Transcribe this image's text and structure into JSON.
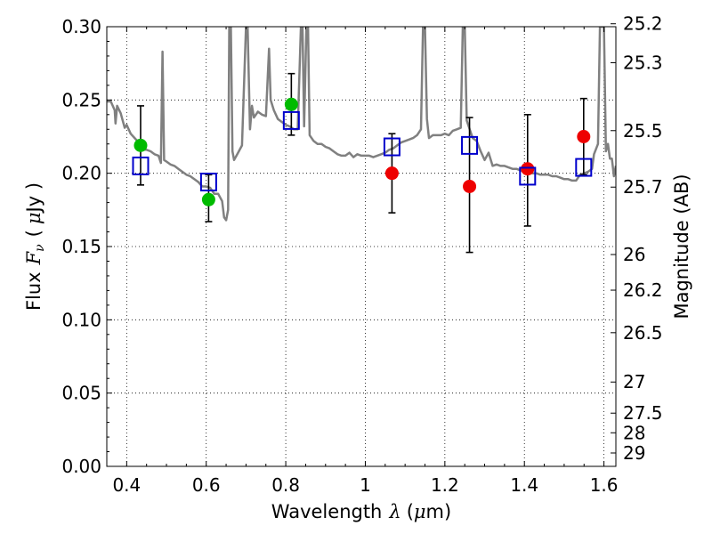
{
  "chart_data": {
    "type": "scatter",
    "title": "",
    "xlabel": "Wavelength",
    "xlabel_math": "λ",
    "xlabel_unit_open": "(",
    "xlabel_unit_math": "μ",
    "xlabel_unit_text": "m)",
    "ylabel": "Flux",
    "ylabel_math": "F",
    "ylabel_math_sub": "ν",
    "ylabel_unit_open": "(",
    "ylabel_unit_math": "μ",
    "ylabel_unit_text": "Jy )",
    "y2label": "Magnitude (AB)",
    "xlim": [
      0.35,
      1.63
    ],
    "ylim": [
      0.0,
      0.3
    ],
    "grid": true,
    "x_ticks": [
      0.4,
      0.6,
      0.8,
      1.0,
      1.2,
      1.4,
      1.6
    ],
    "x_tick_labels": [
      "0.4",
      "0.6",
      "0.8",
      "1",
      "1.2",
      "1.4",
      "1.6"
    ],
    "y_ticks": [
      0.0,
      0.05,
      0.1,
      0.15,
      0.2,
      0.25,
      0.3
    ],
    "y_tick_labels": [
      "0.00",
      "0.05",
      "0.10",
      "0.15",
      "0.20",
      "0.25",
      "0.30"
    ],
    "y2_ticks": [
      25.2,
      25.3,
      25.5,
      25.7,
      26,
      26.2,
      26.5,
      27,
      27.5,
      28,
      29
    ],
    "y2_tick_labels": [
      "25.2",
      "25.3",
      "25.5",
      "25.7",
      "26",
      "26.2",
      "26.5",
      "27",
      "27.5",
      "28",
      "29"
    ],
    "colors": {
      "template": "#808080",
      "green": "#00bb00",
      "red": "#ee0000",
      "box": "#0000cc",
      "errorbar": "#000000"
    },
    "observed": [
      {
        "x": 0.435,
        "y": 0.219,
        "yerr_low": 0.192,
        "yerr_high": 0.246,
        "color": "green"
      },
      {
        "x": 0.606,
        "y": 0.182,
        "yerr_low": 0.167,
        "yerr_high": 0.199,
        "color": "green"
      },
      {
        "x": 0.814,
        "y": 0.247,
        "yerr_low": 0.226,
        "yerr_high": 0.268,
        "color": "green"
      },
      {
        "x": 1.067,
        "y": 0.2,
        "yerr_low": 0.173,
        "yerr_high": 0.227,
        "color": "red"
      },
      {
        "x": 1.262,
        "y": 0.191,
        "yerr_low": 0.146,
        "yerr_high": 0.238,
        "color": "red"
      },
      {
        "x": 1.408,
        "y": 0.203,
        "yerr_low": 0.164,
        "yerr_high": 0.24,
        "color": "red"
      },
      {
        "x": 1.549,
        "y": 0.225,
        "yerr_low": 0.199,
        "yerr_high": 0.251,
        "color": "red"
      }
    ],
    "model": [
      {
        "x": 0.435,
        "y": 0.205
      },
      {
        "x": 0.606,
        "y": 0.194
      },
      {
        "x": 0.814,
        "y": 0.236
      },
      {
        "x": 1.067,
        "y": 0.218
      },
      {
        "x": 1.262,
        "y": 0.219
      },
      {
        "x": 1.408,
        "y": 0.198
      },
      {
        "x": 1.549,
        "y": 0.204
      }
    ],
    "template_spectrum": [
      [
        0.35,
        0.249
      ],
      [
        0.36,
        0.249
      ],
      [
        0.37,
        0.243
      ],
      [
        0.372,
        0.234
      ],
      [
        0.376,
        0.246
      ],
      [
        0.385,
        0.241
      ],
      [
        0.395,
        0.231
      ],
      [
        0.4,
        0.233
      ],
      [
        0.41,
        0.227
      ],
      [
        0.42,
        0.224
      ],
      [
        0.43,
        0.221
      ],
      [
        0.44,
        0.216
      ],
      [
        0.45,
        0.216
      ],
      [
        0.46,
        0.215
      ],
      [
        0.47,
        0.213
      ],
      [
        0.48,
        0.212
      ],
      [
        0.486,
        0.207
      ],
      [
        0.49,
        0.283
      ],
      [
        0.494,
        0.209
      ],
      [
        0.5,
        0.208
      ],
      [
        0.51,
        0.206
      ],
      [
        0.52,
        0.205
      ],
      [
        0.53,
        0.203
      ],
      [
        0.54,
        0.201
      ],
      [
        0.55,
        0.199
      ],
      [
        0.56,
        0.198
      ],
      [
        0.57,
        0.196
      ],
      [
        0.58,
        0.194
      ],
      [
        0.59,
        0.191
      ],
      [
        0.6,
        0.191
      ],
      [
        0.61,
        0.19
      ],
      [
        0.62,
        0.186
      ],
      [
        0.63,
        0.186
      ],
      [
        0.64,
        0.181
      ],
      [
        0.645,
        0.17
      ],
      [
        0.65,
        0.168
      ],
      [
        0.655,
        0.175
      ],
      [
        0.658,
        0.3
      ],
      [
        0.662,
        0.3
      ],
      [
        0.666,
        0.215
      ],
      [
        0.67,
        0.209
      ],
      [
        0.68,
        0.214
      ],
      [
        0.69,
        0.219
      ],
      [
        0.7,
        0.3
      ],
      [
        0.704,
        0.3
      ],
      [
        0.71,
        0.23
      ],
      [
        0.715,
        0.246
      ],
      [
        0.72,
        0.238
      ],
      [
        0.73,
        0.242
      ],
      [
        0.74,
        0.24
      ],
      [
        0.75,
        0.239
      ],
      [
        0.758,
        0.285
      ],
      [
        0.762,
        0.25
      ],
      [
        0.77,
        0.243
      ],
      [
        0.78,
        0.237
      ],
      [
        0.79,
        0.235
      ],
      [
        0.8,
        0.233
      ],
      [
        0.81,
        0.232
      ],
      [
        0.82,
        0.23
      ],
      [
        0.83,
        0.23
      ],
      [
        0.838,
        0.3
      ],
      [
        0.842,
        0.3
      ],
      [
        0.846,
        0.232
      ],
      [
        0.852,
        0.3
      ],
      [
        0.856,
        0.3
      ],
      [
        0.86,
        0.226
      ],
      [
        0.87,
        0.222
      ],
      [
        0.88,
        0.22
      ],
      [
        0.89,
        0.22
      ],
      [
        0.9,
        0.218
      ],
      [
        0.91,
        0.217
      ],
      [
        0.92,
        0.215
      ],
      [
        0.93,
        0.213
      ],
      [
        0.94,
        0.212
      ],
      [
        0.95,
        0.212
      ],
      [
        0.96,
        0.214
      ],
      [
        0.97,
        0.211
      ],
      [
        0.98,
        0.213
      ],
      [
        0.99,
        0.212
      ],
      [
        1.0,
        0.212
      ],
      [
        1.01,
        0.212
      ],
      [
        1.02,
        0.211
      ],
      [
        1.03,
        0.212
      ],
      [
        1.04,
        0.213
      ],
      [
        1.05,
        0.214
      ],
      [
        1.06,
        0.216
      ],
      [
        1.07,
        0.217
      ],
      [
        1.08,
        0.219
      ],
      [
        1.09,
        0.221
      ],
      [
        1.1,
        0.222
      ],
      [
        1.11,
        0.223
      ],
      [
        1.12,
        0.224
      ],
      [
        1.13,
        0.226
      ],
      [
        1.14,
        0.23
      ],
      [
        1.145,
        0.3
      ],
      [
        1.15,
        0.3
      ],
      [
        1.155,
        0.237
      ],
      [
        1.16,
        0.224
      ],
      [
        1.17,
        0.226
      ],
      [
        1.18,
        0.226
      ],
      [
        1.19,
        0.226
      ],
      [
        1.2,
        0.227
      ],
      [
        1.21,
        0.226
      ],
      [
        1.22,
        0.229
      ],
      [
        1.23,
        0.23
      ],
      [
        1.24,
        0.231
      ],
      [
        1.245,
        0.3
      ],
      [
        1.25,
        0.3
      ],
      [
        1.255,
        0.236
      ],
      [
        1.27,
        0.224
      ],
      [
        1.28,
        0.222
      ],
      [
        1.29,
        0.215
      ],
      [
        1.3,
        0.209
      ],
      [
        1.31,
        0.214
      ],
      [
        1.32,
        0.205
      ],
      [
        1.33,
        0.206
      ],
      [
        1.34,
        0.205
      ],
      [
        1.35,
        0.205
      ],
      [
        1.36,
        0.204
      ],
      [
        1.37,
        0.203
      ],
      [
        1.38,
        0.203
      ],
      [
        1.39,
        0.202
      ],
      [
        1.4,
        0.201
      ],
      [
        1.41,
        0.201
      ],
      [
        1.42,
        0.2
      ],
      [
        1.43,
        0.2
      ],
      [
        1.44,
        0.199
      ],
      [
        1.45,
        0.199
      ],
      [
        1.46,
        0.199
      ],
      [
        1.47,
        0.198
      ],
      [
        1.48,
        0.198
      ],
      [
        1.49,
        0.197
      ],
      [
        1.5,
        0.196
      ],
      [
        1.51,
        0.196
      ],
      [
        1.52,
        0.195
      ],
      [
        1.53,
        0.195
      ],
      [
        1.54,
        0.199
      ],
      [
        1.55,
        0.2
      ],
      [
        1.56,
        0.201
      ],
      [
        1.57,
        0.203
      ],
      [
        1.575,
        0.213
      ],
      [
        1.585,
        0.22
      ],
      [
        1.59,
        0.3
      ],
      [
        1.6,
        0.3
      ],
      [
        1.605,
        0.215
      ],
      [
        1.61,
        0.22
      ],
      [
        1.615,
        0.21
      ],
      [
        1.62,
        0.21
      ],
      [
        1.625,
        0.198
      ],
      [
        1.63,
        0.205
      ]
    ]
  }
}
